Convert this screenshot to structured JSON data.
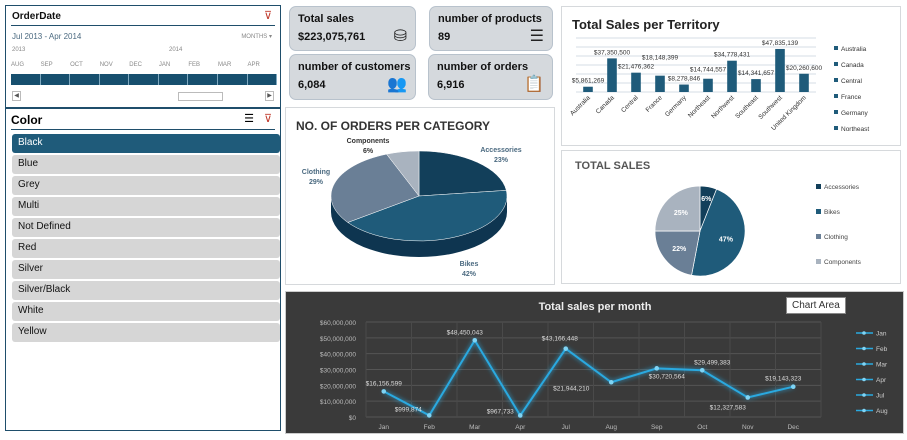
{
  "timeline": {
    "title": "OrderDate",
    "range": "Jul 2013 - Apr 2014",
    "period": "MONTHS",
    "years": [
      "2013",
      "2014"
    ],
    "months": [
      "AUG",
      "SEP",
      "OCT",
      "NOV",
      "DEC",
      "JAN",
      "FEB",
      "MAR",
      "APR"
    ]
  },
  "color_slicer": {
    "title": "Color",
    "selected": "Black",
    "items": [
      "Black",
      "Blue",
      "Grey",
      "Multi",
      "Not Defined",
      "Red",
      "Silver",
      "Silver/Black",
      "White",
      "Yellow"
    ]
  },
  "kpis": [
    {
      "label": "Total sales",
      "value": "$223,075,761",
      "icon": "coins-icon"
    },
    {
      "label": "number of products",
      "value": "89",
      "icon": "list-icon"
    },
    {
      "label": "number of customers",
      "value": "6,084",
      "icon": "customers-icon"
    },
    {
      "label": "number of orders",
      "value": "6,916",
      "icon": "clipboard-icon"
    }
  ],
  "colors": {
    "dark": "#1f5b7a",
    "navy": "#123f5a",
    "slate": "#6a7f96",
    "light": "#a9b3bf",
    "line": "#29a9e0",
    "bg_dark": "#3a3a3a"
  },
  "chart_data": [
    {
      "type": "pie",
      "title": "NO. OF ORDERS PER CATEGORY",
      "categories": [
        "Accessories",
        "Bikes",
        "Clothing",
        "Components"
      ],
      "values": [
        23,
        42,
        29,
        6
      ],
      "labels": [
        "23%",
        "42%",
        "29%",
        "6%"
      ],
      "style": "3d"
    },
    {
      "type": "bar",
      "title": "Total Sales per Territory",
      "categories": [
        "Australia",
        "Canada",
        "Central",
        "France",
        "Germany",
        "Northeast",
        "Northwest",
        "Southeast",
        "Southwest",
        "United Kingdom"
      ],
      "values": [
        5861269,
        37350500,
        21476362,
        18148399,
        8278846,
        14744557,
        34778431,
        14341657,
        47835139,
        20260600
      ],
      "labels": [
        "$5,861,269",
        "$37,350,500",
        "$21,476,362",
        "$18,148,399",
        "$8,278,846",
        "$14,744,557",
        "$34,778,431",
        "$14,341,657",
        "$47,835,139",
        "$20,260,600"
      ],
      "legend": [
        "Australia",
        "Canada",
        "Central",
        "France",
        "Germany",
        "Northeast"
      ],
      "ylim": [
        0,
        60000000
      ]
    },
    {
      "type": "pie",
      "title": "TOTAL SALES",
      "categories": [
        "Accessories",
        "Bikes",
        "Clothing",
        "Components"
      ],
      "values": [
        6,
        47,
        22,
        25
      ],
      "labels": [
        "6%",
        "47%",
        "22%",
        "25%"
      ],
      "legend_position": "right"
    },
    {
      "type": "line",
      "title": "Total sales per month",
      "categories": [
        "Jan",
        "Feb",
        "Mar",
        "Apr",
        "Jul",
        "Aug",
        "Sep",
        "Oct",
        "Nov",
        "Dec"
      ],
      "values": [
        16156599,
        999874,
        48450043,
        967733,
        43166448,
        21944210,
        30720564,
        29499383,
        12327583,
        19143323
      ],
      "labels": [
        "$16,156,599",
        "$999,874",
        "$48,450,043",
        "$967,733",
        "$43,166,448",
        "$21,944,210",
        "$30,720,564",
        "$29,499,383",
        "$12,327,583",
        "$19,143,323"
      ],
      "yticks": [
        "$0",
        "$10,000,000",
        "$20,000,000",
        "$30,000,000",
        "$40,000,000",
        "$50,000,000",
        "$60,000,000"
      ],
      "ylim": [
        0,
        60000000
      ],
      "legend": [
        "Jan",
        "Feb",
        "Mar",
        "Apr",
        "Jul",
        "Aug"
      ],
      "tooltip": "Chart Area",
      "grid": true
    }
  ]
}
